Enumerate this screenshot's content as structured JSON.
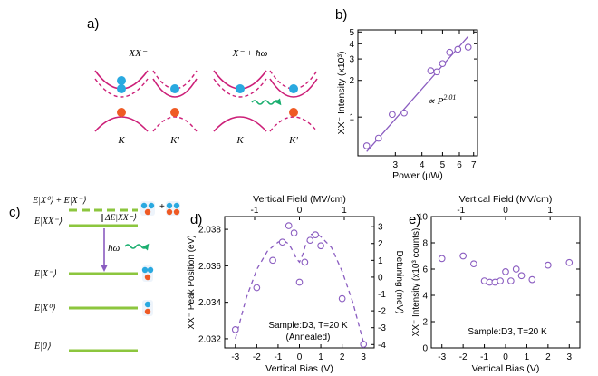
{
  "colors": {
    "magenta": "#cc1f78",
    "blue": "#29a9e0",
    "orange": "#ef5a24",
    "green": "#1aae6f",
    "level_green": "#8cc63e",
    "purple": "#8a5cc0"
  },
  "panel_a": {
    "label": "a)",
    "title_left": "XX⁻",
    "title_right": "X⁻ + ħω",
    "valley_k": "K",
    "valley_kp": "K′"
  },
  "panel_c": {
    "label": "c)",
    "levels": [
      {
        "label": "E|X⁰⟩ + E|X⁻⟩",
        "style": "dashed"
      },
      {
        "label": "E|XX⁻⟩",
        "style": "solid"
      },
      {
        "label": "E|X⁻⟩",
        "style": "solid"
      },
      {
        "label": "E|X⁰⟩",
        "style": "solid"
      },
      {
        "label": "E|0⟩",
        "style": "solid"
      }
    ],
    "delta_label": "ΔE|XX⁻⟩",
    "photon_label": "ħω",
    "plus_sign": "+"
  },
  "chart_data": [
    {
      "panel_label": "b)",
      "type": "scatter",
      "xscale": "log",
      "yscale": "log",
      "xlim": [
        2.0,
        7.3
      ],
      "ylim": [
        0.48,
        5.2
      ],
      "xlabel": "Power (μW)",
      "ylabel": "XX⁻ Intensity (x10³)",
      "xticks": [
        3,
        4,
        5,
        6,
        7
      ],
      "yticks": [
        1,
        2,
        3,
        4,
        5
      ],
      "x": [
        2.2,
        2.5,
        2.9,
        3.3,
        4.4,
        4.7,
        5.0,
        5.4,
        5.9,
        6.6
      ],
      "y": [
        0.58,
        0.67,
        1.05,
        1.08,
        2.4,
        2.35,
        2.75,
        3.4,
        3.6,
        3.75
      ],
      "fit": {
        "label": "∝ P^2.01",
        "base": "∝ P",
        "exponent": "2.01",
        "x": [
          2.2,
          6.6
        ],
        "y": [
          0.52,
          4.6
        ]
      }
    },
    {
      "panel_label": "d)",
      "type": "scatter",
      "xlim": [
        -3.5,
        3.5
      ],
      "ylim": [
        2.0315,
        2.0387
      ],
      "y2lim": [
        -4.2,
        3.6
      ],
      "xlabel": "Vertical Bias (V)",
      "ylabel": "XX⁻ Peak Position (eV)",
      "y2label": "Detuning (meV)",
      "top_xlabel": "Vertical Field (MV/cm)",
      "top_xticks": [
        {
          "label": "-1",
          "at_bias": -2.1
        },
        {
          "label": "0",
          "at_bias": 0
        },
        {
          "label": "1",
          "at_bias": 2.1
        }
      ],
      "xticks": [
        -3,
        -2,
        -1,
        0,
        1,
        2,
        3
      ],
      "yticks": [
        2.032,
        2.034,
        2.036,
        2.038
      ],
      "y2ticks": [
        -4,
        -3,
        -2,
        -1,
        0,
        1,
        2,
        3
      ],
      "x": [
        -3,
        -2,
        -1.25,
        -0.8,
        -0.5,
        -0.25,
        0,
        0.25,
        0.5,
        0.75,
        1,
        2,
        3
      ],
      "y": [
        2.0325,
        2.0348,
        2.0363,
        2.0373,
        2.0382,
        2.0378,
        2.0351,
        2.0362,
        2.0374,
        2.0377,
        2.0371,
        2.0342,
        2.0317
      ],
      "fit_x": [
        -3,
        -2.5,
        -2,
        -1.5,
        -1,
        -0.75,
        -0.5,
        -0.3,
        -0.15,
        0,
        0.15,
        0.3,
        0.5,
        0.75,
        1,
        1.5,
        2,
        2.5,
        3
      ],
      "fit_y": [
        2.032,
        2.0342,
        2.0358,
        2.0368,
        2.0373,
        2.0374,
        2.0372,
        2.0368,
        2.0364,
        2.0362,
        2.0366,
        2.0372,
        2.0377,
        2.0378,
        2.0376,
        2.037,
        2.0357,
        2.034,
        2.0318
      ],
      "annotation_line1": "Sample:D3, T=20 K",
      "annotation_line2": "(Annealed)"
    },
    {
      "panel_label": "e)",
      "type": "scatter",
      "xlim": [
        -3.5,
        3.5
      ],
      "ylim": [
        0,
        10
      ],
      "xlabel": "Vertical Bias (V)",
      "ylabel": "XX⁻ Intensity (x10³ counts)",
      "top_xlabel": "Vertical Field (MV/cm)",
      "top_xticks": [
        {
          "label": "-1",
          "at_bias": -2.1
        },
        {
          "label": "0",
          "at_bias": 0
        },
        {
          "label": "1",
          "at_bias": 2.1
        }
      ],
      "xticks": [
        -3,
        -2,
        -1,
        0,
        1,
        2,
        3
      ],
      "yticks": [
        0,
        2,
        4,
        6,
        8,
        10
      ],
      "x": [
        -3,
        -2,
        -1.5,
        -1,
        -0.75,
        -0.5,
        -0.25,
        0,
        0.25,
        0.5,
        0.75,
        1.25,
        2,
        3
      ],
      "y": [
        6.8,
        7.0,
        6.4,
        5.1,
        5.0,
        5.0,
        5.1,
        5.8,
        5.1,
        6.0,
        5.5,
        5.2,
        6.3,
        6.5
      ],
      "annotation_line1": "Sample:D3, T=20 K"
    }
  ]
}
